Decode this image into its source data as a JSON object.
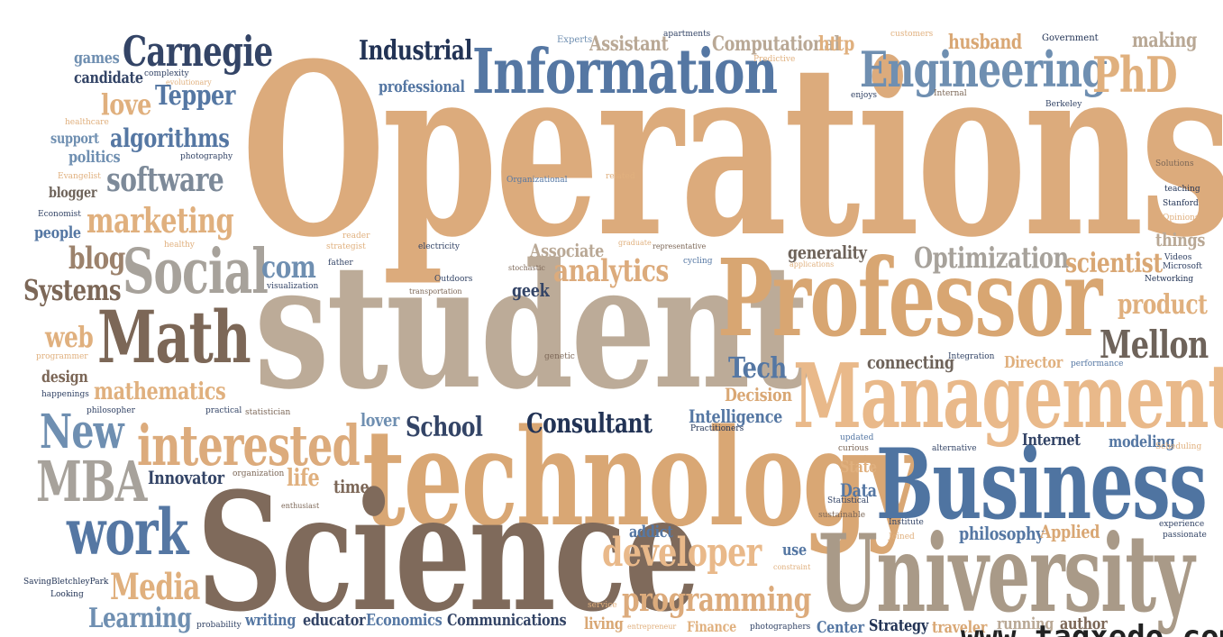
{
  "palette": {
    "tan": "#d9a774",
    "light_tan": "#e7b98a",
    "brown": "#7c6757",
    "taupe": "#b9a895",
    "gray": "#a7a29b",
    "blue": "#5577a3",
    "navy": "#223355",
    "slate": "#6f8fb1"
  },
  "words": {
    "operations": "Operations",
    "student": "student",
    "technology": "technology",
    "science": "Science",
    "professor": "Professor",
    "management": "Management",
    "business": "Business",
    "university": "University",
    "information": "Information",
    "engineering": "Engineering",
    "math": "Math",
    "social": "Social",
    "carnegie": "Carnegie",
    "tepper": "Tepper",
    "phd": "PhD",
    "industrial": "Industrial",
    "computational": "Computational",
    "husband": "husband",
    "making": "making",
    "assistant": "Assistant",
    "experts": "Experts",
    "apartments": "apartments",
    "customers": "customers",
    "government": "Government",
    "http": "http",
    "predictive": "Predictive",
    "games": "games",
    "candidate": "candidate",
    "complexity": "complexity",
    "evolutionary": "evolutionary",
    "love": "love",
    "professional": "professional",
    "enjoys": "enjoys",
    "internal": "Internal",
    "berkeley": "Berkeley",
    "healthcare": "healthcare",
    "algorithms": "algorithms",
    "support": "support",
    "politics": "politics",
    "photography": "photography",
    "software": "software",
    "evangelist": "Evangelist",
    "blogger": "blogger",
    "organizational": "Organizational",
    "related": "related",
    "solutions": "Solutions",
    "teaching": "teaching",
    "stanford": "Stanford",
    "economist": "Economist",
    "marketing": "marketing",
    "opinions": "Opinions",
    "people": "people",
    "healthy": "healthy",
    "reader": "reader",
    "strategist": "strategist",
    "electricity": "electricity",
    "graduate": "graduate",
    "representative": "representative",
    "associate": "Associate",
    "generality": "generality",
    "things": "things",
    "blog": "blog",
    "father": "father",
    "outdoors": "Outdoors",
    "stochastic": "stochastic",
    "cycling": "cycling",
    "applications": "applications",
    "optimization": "Optimization",
    "scientist": "scientist",
    "videos": "Videos",
    "microsoft": "Microsoft",
    "analytics": "analytics",
    "com": "com",
    "systems": "Systems",
    "visualization": "visualization",
    "transportation": "transportation",
    "geek": "geek",
    "networking": "Networking",
    "product": "product",
    "web": "web",
    "mellon": "Mellon",
    "programmer": "programmer",
    "genetic": "genetic",
    "connecting": "connecting",
    "integration": "Integration",
    "director": "Director",
    "performance": "performance",
    "tech": "Tech",
    "design": "design",
    "happenings": "happenings",
    "mathematics": "mathematics",
    "decision": "Decision",
    "philosopher": "philosopher",
    "practical": "practical",
    "statistician": "statistician",
    "lover": "lover",
    "school": "School",
    "consultant": "Consultant",
    "intelligence": "Intelligence",
    "practitioners": "Practitioners",
    "new": "New",
    "interested": "interested",
    "updated": "updated",
    "curious": "curious",
    "alternative": "alternative",
    "internet": "Internet",
    "modeling": "modeling",
    "scheduling": "Scheduling",
    "mba": "MBA",
    "innovator": "Innovator",
    "organization": "organization",
    "life": "life",
    "time": "time",
    "data": "Data",
    "state": "State",
    "statistical": "Statistical",
    "enthusiast": "enthusiast",
    "sustainable": "sustainable",
    "work": "work",
    "addict": "addict",
    "institute": "Institute",
    "joined": "Joined",
    "philosophy": "philosophy",
    "applied": "Applied",
    "experience": "experience",
    "passionate": "passionate",
    "developer": "developer",
    "use": "use",
    "constraint": "constraint",
    "savingbletchleypark": "SavingBletchleyPark",
    "looking": "Looking",
    "media": "Media",
    "service": "service",
    "learning": "Learning",
    "probability": "probability",
    "writing": "writing",
    "educator": "educator",
    "economics": "Economics",
    "communications": "Communications",
    "living": "living",
    "programming": "programming",
    "entrepreneur": "entrepreneur",
    "finance": "Finance",
    "photographers": "photographers",
    "center": "Center",
    "strategy": "Strategy",
    "traveler": "traveler",
    "running": "running",
    "author": "author",
    "watermark": "www.tagxedo.com"
  }
}
